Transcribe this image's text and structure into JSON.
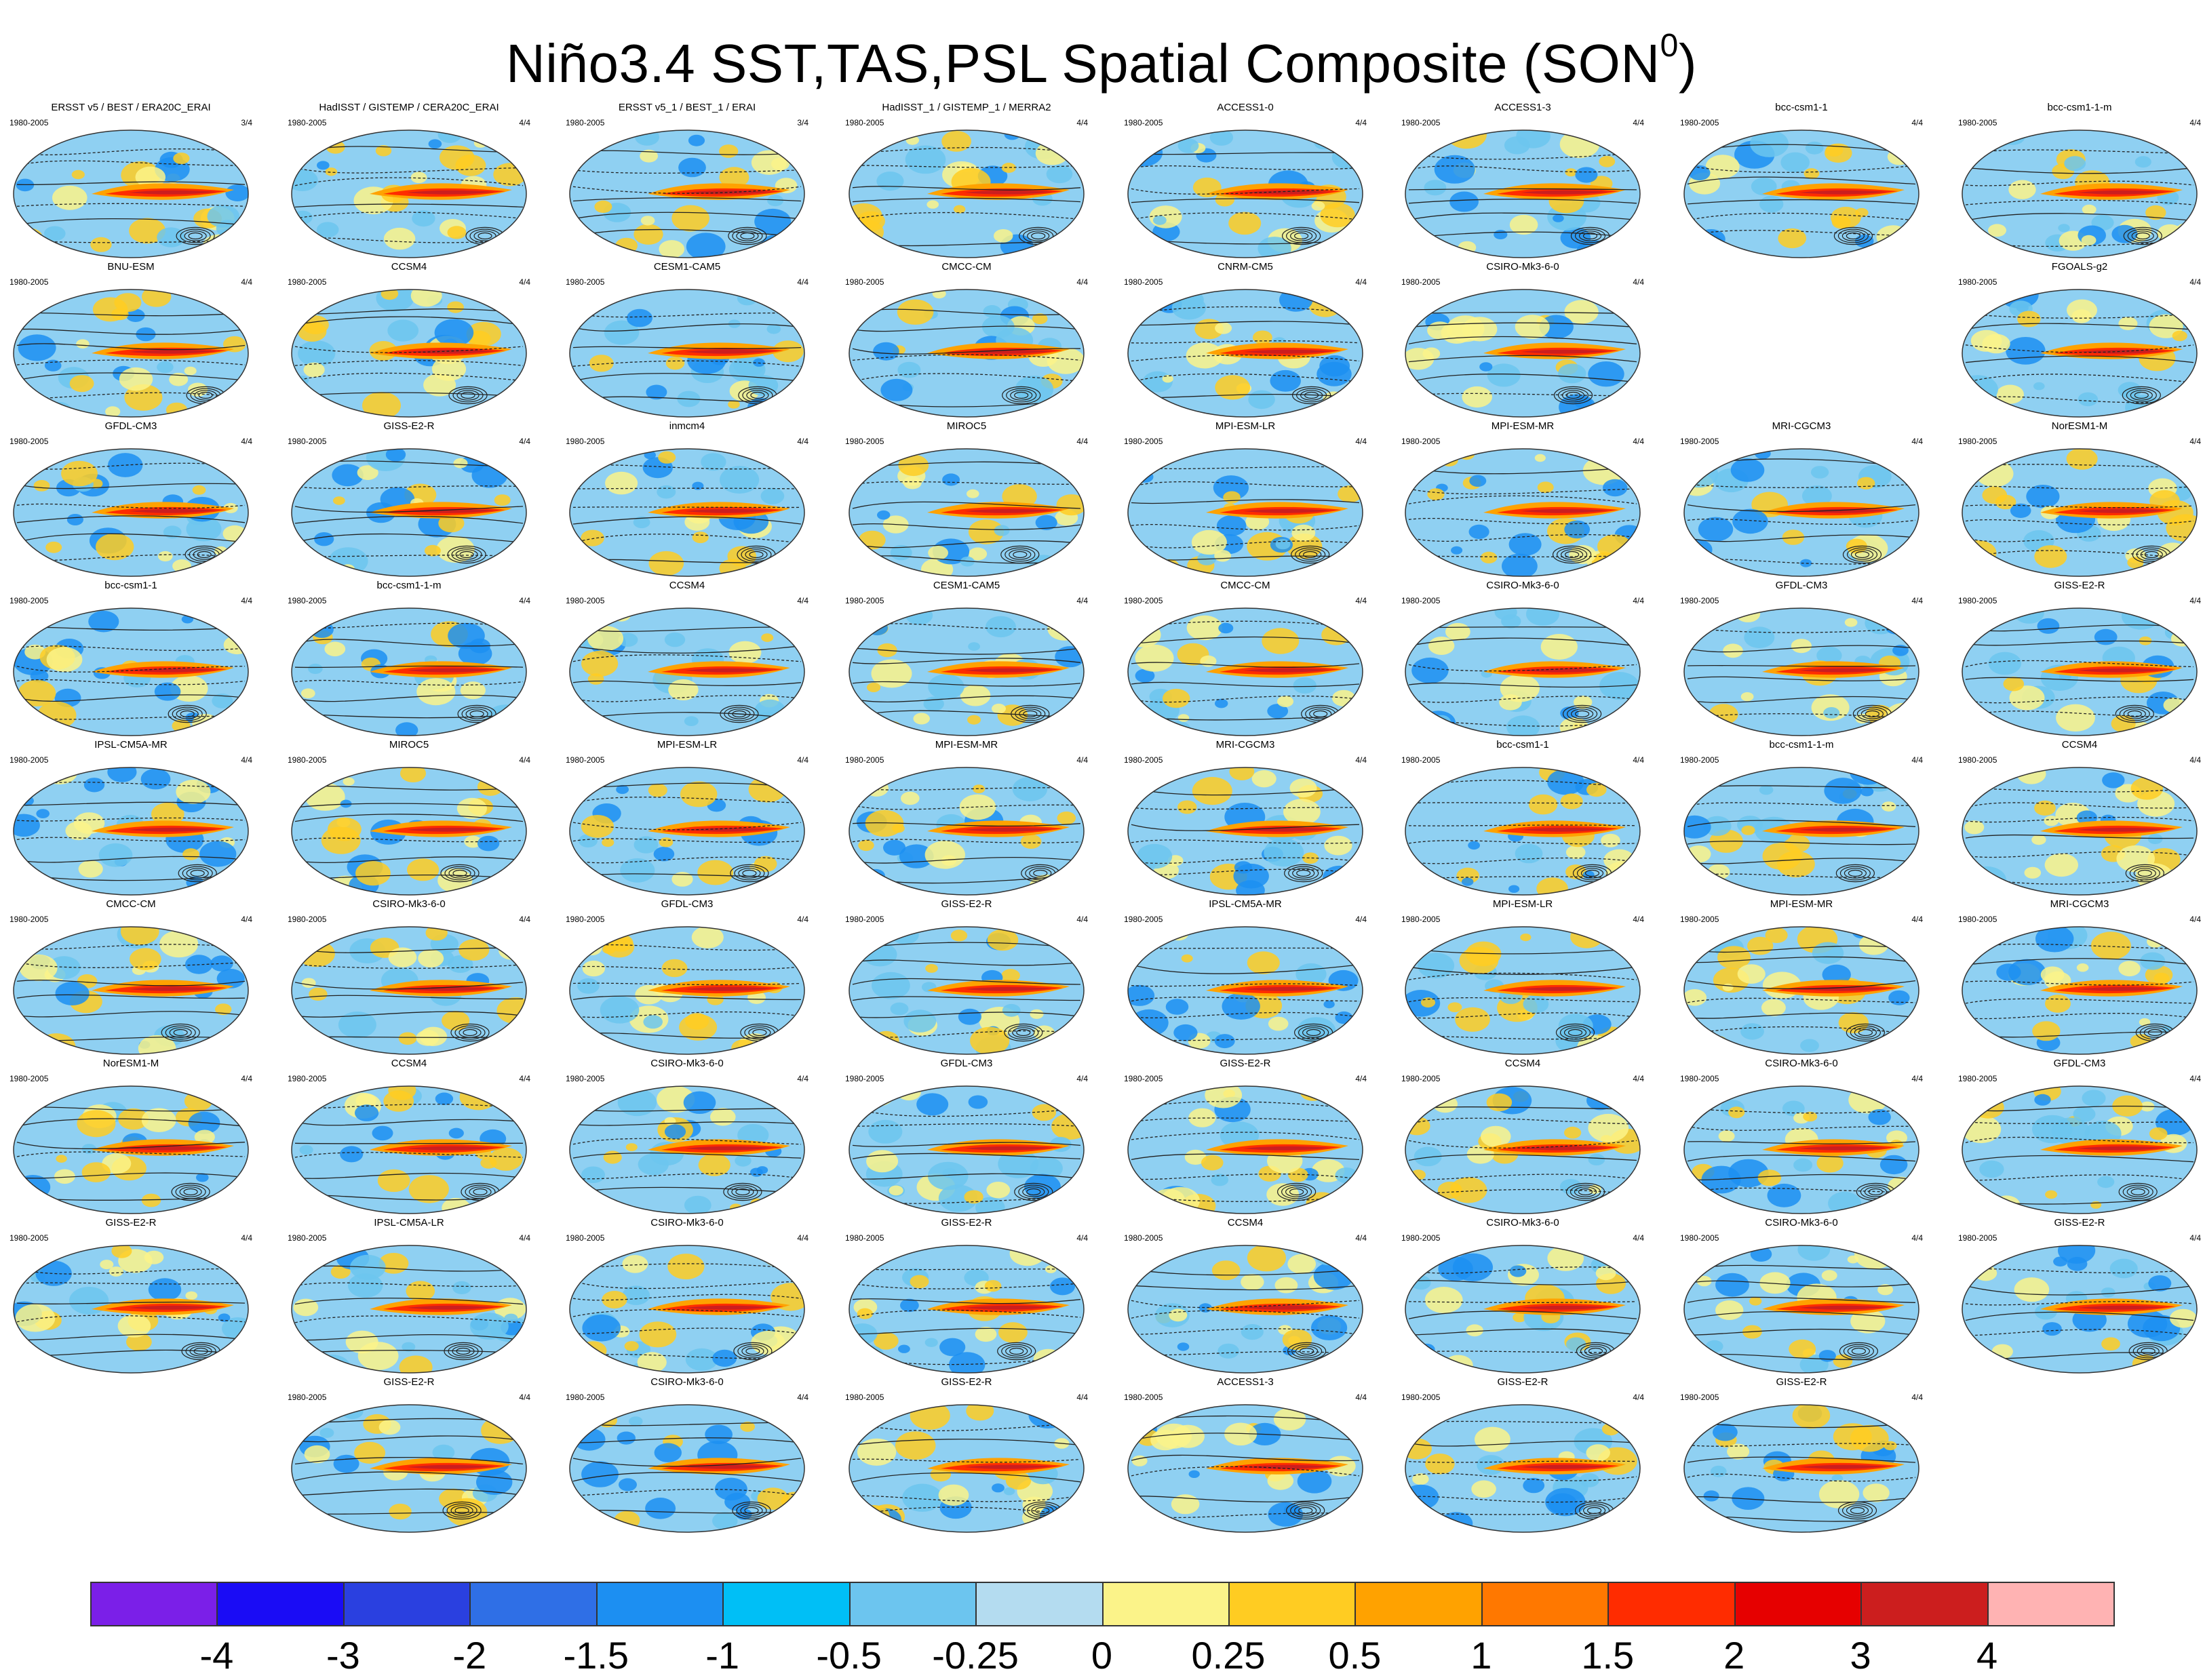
{
  "title": {
    "main": "Niño3.4 SST,TAS,PSL Spatial Composite (SON",
    "superscript": "0",
    "close": ")"
  },
  "panels": [
    [
      {
        "name": "ERSST v5 / BEST / ERA20C_ERAI",
        "period": "1980-2005",
        "ratio": "3/4"
      },
      {
        "name": "HadISST / GISTEMP / CERA20C_ERAI",
        "period": "1980-2005",
        "ratio": "4/4"
      },
      {
        "name": "ERSST v5_1 / BEST_1 / ERAI",
        "period": "1980-2005",
        "ratio": "3/4"
      },
      {
        "name": "HadISST_1 / GISTEMP_1 / MERRA2",
        "period": "1980-2005",
        "ratio": "4/4"
      },
      {
        "name": "ACCESS1-0",
        "period": "1980-2005",
        "ratio": "4/4"
      },
      {
        "name": "ACCESS1-3",
        "period": "1980-2005",
        "ratio": "4/4"
      },
      {
        "name": "bcc-csm1-1",
        "period": "1980-2005",
        "ratio": "4/4"
      },
      {
        "name": "bcc-csm1-1-m",
        "period": "1980-2005",
        "ratio": "4/4"
      }
    ],
    [
      {
        "name": "BNU-ESM",
        "period": "1980-2005",
        "ratio": "4/4"
      },
      {
        "name": "CCSM4",
        "period": "1980-2005",
        "ratio": "4/4"
      },
      {
        "name": "CESM1-CAM5",
        "period": "1980-2005",
        "ratio": "4/4"
      },
      {
        "name": "CMCC-CM",
        "period": "1980-2005",
        "ratio": "4/4"
      },
      {
        "name": "CNRM-CM5",
        "period": "1980-2005",
        "ratio": "4/4"
      },
      {
        "name": "CSIRO-Mk3-6-0",
        "period": "1980-2005",
        "ratio": "4/4"
      },
      null,
      {
        "name": "FGOALS-g2",
        "period": "1980-2005",
        "ratio": "4/4"
      }
    ],
    [
      {
        "name": "GFDL-CM3",
        "period": "1980-2005",
        "ratio": "4/4"
      },
      {
        "name": "GISS-E2-R",
        "period": "1980-2005",
        "ratio": "4/4"
      },
      {
        "name": "inmcm4",
        "period": "1980-2005",
        "ratio": "4/4"
      },
      {
        "name": "MIROC5",
        "period": "1980-2005",
        "ratio": "4/4"
      },
      {
        "name": "MPI-ESM-LR",
        "period": "1980-2005",
        "ratio": "4/4"
      },
      {
        "name": "MPI-ESM-MR",
        "period": "1980-2005",
        "ratio": "4/4"
      },
      {
        "name": "MRI-CGCM3",
        "period": "1980-2005",
        "ratio": "4/4"
      },
      {
        "name": "NorESM1-M",
        "period": "1980-2005",
        "ratio": "4/4"
      }
    ],
    [
      {
        "name": "bcc-csm1-1",
        "period": "1980-2005",
        "ratio": "4/4"
      },
      {
        "name": "bcc-csm1-1-m",
        "period": "1980-2005",
        "ratio": "4/4"
      },
      {
        "name": "CCSM4",
        "period": "1980-2005",
        "ratio": "4/4"
      },
      {
        "name": "CESM1-CAM5",
        "period": "1980-2005",
        "ratio": "4/4"
      },
      {
        "name": "CMCC-CM",
        "period": "1980-2005",
        "ratio": "4/4"
      },
      {
        "name": "CSIRO-Mk3-6-0",
        "period": "1980-2005",
        "ratio": "4/4"
      },
      {
        "name": "GFDL-CM3",
        "period": "1980-2005",
        "ratio": "4/4"
      },
      {
        "name": "GISS-E2-R",
        "period": "1980-2005",
        "ratio": "4/4"
      }
    ],
    [
      {
        "name": "IPSL-CM5A-MR",
        "period": "1980-2005",
        "ratio": "4/4"
      },
      {
        "name": "MIROC5",
        "period": "1980-2005",
        "ratio": "4/4"
      },
      {
        "name": "MPI-ESM-LR",
        "period": "1980-2005",
        "ratio": "4/4"
      },
      {
        "name": "MPI-ESM-MR",
        "period": "1980-2005",
        "ratio": "4/4"
      },
      {
        "name": "MRI-CGCM3",
        "period": "1980-2005",
        "ratio": "4/4"
      },
      {
        "name": "bcc-csm1-1",
        "period": "1980-2005",
        "ratio": "4/4"
      },
      {
        "name": "bcc-csm1-1-m",
        "period": "1980-2005",
        "ratio": "4/4"
      },
      {
        "name": "CCSM4",
        "period": "1980-2005",
        "ratio": "4/4"
      }
    ],
    [
      {
        "name": "CMCC-CM",
        "period": "1980-2005",
        "ratio": "4/4"
      },
      {
        "name": "CSIRO-Mk3-6-0",
        "period": "1980-2005",
        "ratio": "4/4"
      },
      {
        "name": "GFDL-CM3",
        "period": "1980-2005",
        "ratio": "4/4"
      },
      {
        "name": "GISS-E2-R",
        "period": "1980-2005",
        "ratio": "4/4"
      },
      {
        "name": "IPSL-CM5A-MR",
        "period": "1980-2005",
        "ratio": "4/4"
      },
      {
        "name": "MPI-ESM-LR",
        "period": "1980-2005",
        "ratio": "4/4"
      },
      {
        "name": "MPI-ESM-MR",
        "period": "1980-2005",
        "ratio": "4/4"
      },
      {
        "name": "MRI-CGCM3",
        "period": "1980-2005",
        "ratio": "4/4"
      }
    ],
    [
      {
        "name": "NorESM1-M",
        "period": "1980-2005",
        "ratio": "4/4"
      },
      {
        "name": "CCSM4",
        "period": "1980-2005",
        "ratio": "4/4"
      },
      {
        "name": "CSIRO-Mk3-6-0",
        "period": "1980-2005",
        "ratio": "4/4"
      },
      {
        "name": "GFDL-CM3",
        "period": "1980-2005",
        "ratio": "4/4"
      },
      {
        "name": "GISS-E2-R",
        "period": "1980-2005",
        "ratio": "4/4"
      },
      {
        "name": "CCSM4",
        "period": "1980-2005",
        "ratio": "4/4"
      },
      {
        "name": "CSIRO-Mk3-6-0",
        "period": "1980-2005",
        "ratio": "4/4"
      },
      {
        "name": "GFDL-CM3",
        "period": "1980-2005",
        "ratio": "4/4"
      }
    ],
    [
      {
        "name": "GISS-E2-R",
        "period": "1980-2005",
        "ratio": "4/4"
      },
      {
        "name": "IPSL-CM5A-LR",
        "period": "1980-2005",
        "ratio": "4/4"
      },
      {
        "name": "CSIRO-Mk3-6-0",
        "period": "1980-2005",
        "ratio": "4/4"
      },
      {
        "name": "GISS-E2-R",
        "period": "1980-2005",
        "ratio": "4/4"
      },
      {
        "name": "CCSM4",
        "period": "1980-2005",
        "ratio": "4/4"
      },
      {
        "name": "CSIRO-Mk3-6-0",
        "period": "1980-2005",
        "ratio": "4/4"
      },
      {
        "name": "CSIRO-Mk3-6-0",
        "period": "1980-2005",
        "ratio": "4/4"
      },
      {
        "name": "GISS-E2-R",
        "period": "1980-2005",
        "ratio": "4/4"
      }
    ],
    [
      null,
      {
        "name": "GISS-E2-R",
        "period": "1980-2005",
        "ratio": "4/4"
      },
      {
        "name": "CSIRO-Mk3-6-0",
        "period": "1980-2005",
        "ratio": "4/4"
      },
      {
        "name": "GISS-E2-R",
        "period": "1980-2005",
        "ratio": "4/4"
      },
      {
        "name": "ACCESS1-3",
        "period": "1980-2005",
        "ratio": "4/4"
      },
      {
        "name": "GISS-E2-R",
        "period": "1980-2005",
        "ratio": "4/4"
      },
      {
        "name": "GISS-E2-R",
        "period": "1980-2005",
        "ratio": "4/4"
      },
      null
    ]
  ],
  "chart_data": {
    "type": "heatmap",
    "title": "Niño3.4 SST,TAS,PSL Spatial Composite (SON0)",
    "colorbar": {
      "tick_labels": [
        "-4",
        "-3",
        "-2",
        "-1.5",
        "-1",
        "-0.5",
        "-0.25",
        "0",
        "0.25",
        "0.5",
        "1",
        "1.5",
        "2",
        "3",
        "4"
      ],
      "colors": [
        "#7b1fe8",
        "#1a0cf5",
        "#2a40e0",
        "#2f6fe6",
        "#1c8ff2",
        "#00bff6",
        "#6cc5ef",
        "#b4dcf0",
        "#fbf389",
        "#ffcc22",
        "#ffa200",
        "#ff7800",
        "#ff2c00",
        "#e60000",
        "#cc1e1e",
        "#ffb3b3"
      ]
    }
  }
}
